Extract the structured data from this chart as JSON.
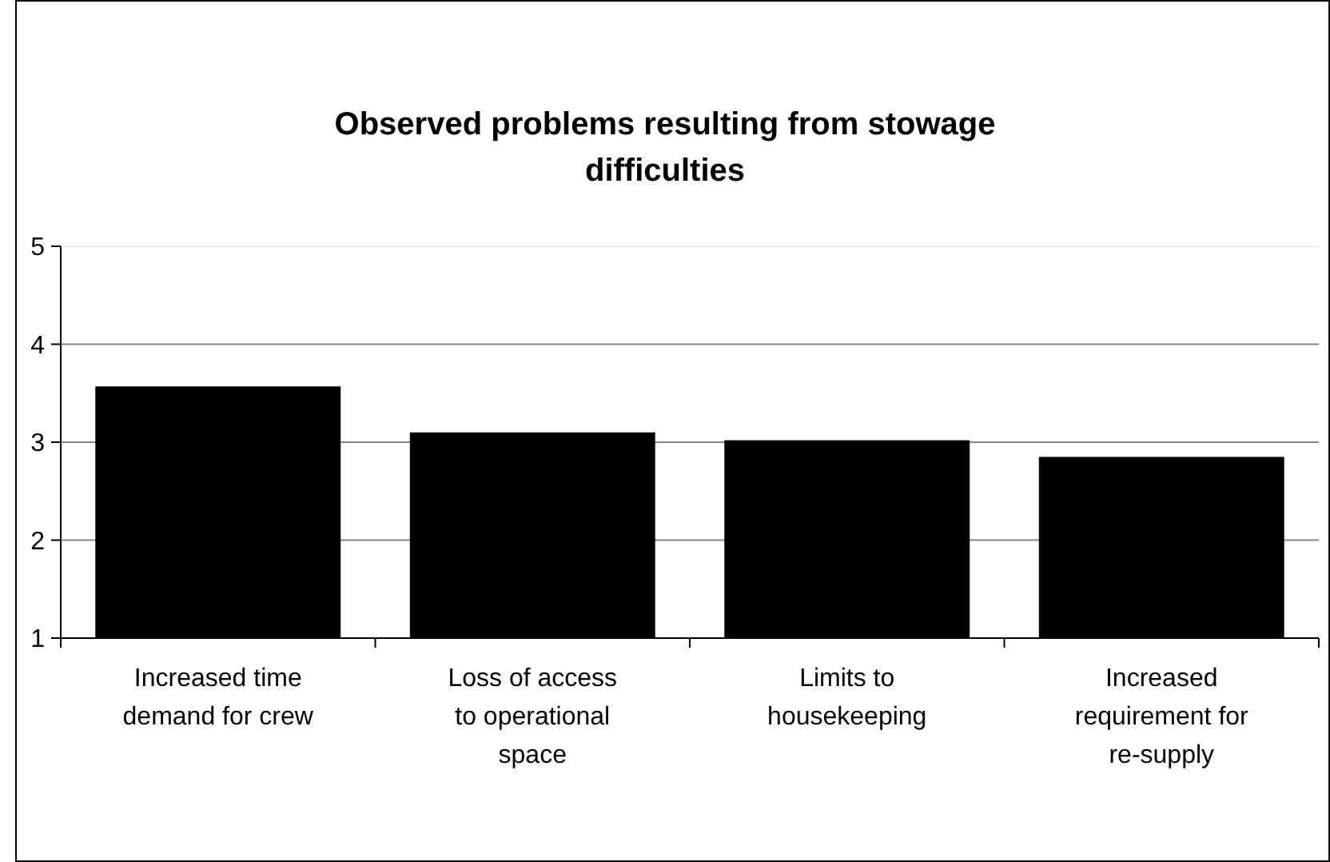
{
  "chart_data": {
    "type": "bar",
    "title": "Observed problems resulting from stowage difficulties",
    "categories": [
      "Increased time demand for crew",
      "Loss of access to operational space",
      "Limits to housekeeping",
      "Increased requirement for re-supply"
    ],
    "values": [
      3.57,
      3.1,
      3.02,
      2.85
    ],
    "color": "#000000",
    "ylim": [
      1,
      5
    ],
    "yticks": [
      1,
      2,
      3,
      4,
      5
    ],
    "grid": "y"
  }
}
